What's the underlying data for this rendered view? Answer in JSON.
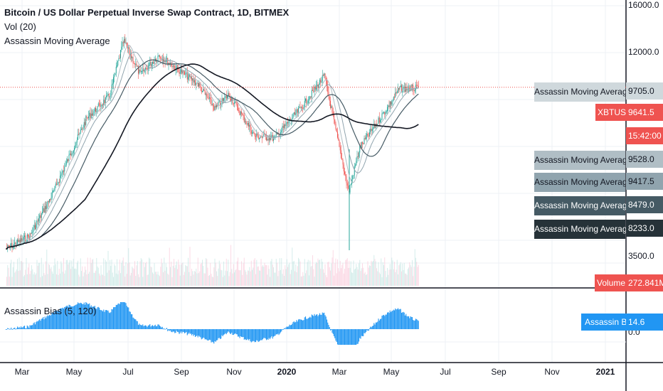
{
  "header": {
    "title": "Bitcoin / US Dollar Perpetual Inverse Swap Contract, 1D, BITMEX",
    "indicator_1": "Vol (20)",
    "indicator_2": "Assassin Moving Average",
    "bias_title": "Assassin Bias (5, 120)"
  },
  "price_axis": {
    "ticks": [
      "16000.0",
      "12000.0",
      "3500.0"
    ],
    "bias_ticks": [
      "0.0"
    ]
  },
  "time_axis": {
    "labels": [
      "Mar",
      "May",
      "Jul",
      "Sep",
      "Nov",
      "2020",
      "Mar",
      "May",
      "Jul",
      "Sep",
      "Nov",
      "2021"
    ]
  },
  "ma_labels": [
    {
      "name": "Assassin Moving Average:Plot",
      "value": "9705.0",
      "color": "#cfd8dc"
    },
    {
      "name": "Assassin Moving Average:Plot",
      "value": "9528.0",
      "color": "#b0bec5"
    },
    {
      "name": "Assassin Moving Average:Plot",
      "value": "9417.5",
      "color": "#90a4ae"
    },
    {
      "name": "Assassin Moving Average:Plot",
      "value": "8479.0",
      "color": "#455a64"
    },
    {
      "name": "Assassin Moving Average:Plot",
      "value": "8233.0",
      "color": "#263238"
    }
  ],
  "last_price": {
    "symbol": "XBTUSD",
    "value": "9641.5",
    "countdown": "15:42:00",
    "color": "#ef5350"
  },
  "volume_tag": {
    "label": "Volume",
    "value": "272.841M",
    "color": "#ef5350"
  },
  "bias_tag": {
    "label": "Assassin Bias",
    "value": "14.6",
    "color": "#2196f3"
  },
  "colors": {
    "up": "#26a69a",
    "down": "#ef5350",
    "bias": "#2196f3",
    "ma_slow": "#131722",
    "ma_mid": "#455a64",
    "price_line": "#ef5350"
  },
  "chart_data": {
    "type": "candlestick",
    "title": "Bitcoin / US Dollar Perpetual Inverse Swap Contract, 1D, BITMEX",
    "interval": "1D",
    "x_range": [
      "2019-02",
      "2021-01"
    ],
    "price_axis_ticks": [
      16000,
      12000,
      3500
    ],
    "last_close": 9641.5,
    "close_path": [
      {
        "date": "2019-02-10",
        "close": 3600
      },
      {
        "date": "2019-03-10",
        "close": 3900
      },
      {
        "date": "2019-04-05",
        "close": 5000
      },
      {
        "date": "2019-05-15",
        "close": 8000
      },
      {
        "date": "2019-06-10",
        "close": 9200
      },
      {
        "date": "2019-06-26",
        "close": 12900
      },
      {
        "date": "2019-07-15",
        "close": 10500
      },
      {
        "date": "2019-08-06",
        "close": 11800
      },
      {
        "date": "2019-09-20",
        "close": 9900
      },
      {
        "date": "2019-10-10",
        "close": 8500
      },
      {
        "date": "2019-10-26",
        "close": 9300
      },
      {
        "date": "2019-11-25",
        "close": 7200
      },
      {
        "date": "2019-12-18",
        "close": 7100
      },
      {
        "date": "2020-01-20",
        "close": 8700
      },
      {
        "date": "2020-02-13",
        "close": 10400
      },
      {
        "date": "2020-03-12",
        "close": 5100
      },
      {
        "date": "2020-03-25",
        "close": 6700
      },
      {
        "date": "2020-04-30",
        "close": 8800
      },
      {
        "date": "2020-05-10",
        "close": 9600
      },
      {
        "date": "2020-06-01",
        "close": 9641.5
      }
    ],
    "moving_averages": [
      9705.0,
      9528.0,
      9417.5,
      8479.0,
      8233.0
    ],
    "volume_last": "272.841M",
    "bias_last": 14.6,
    "bias_params": [
      5,
      120
    ]
  }
}
